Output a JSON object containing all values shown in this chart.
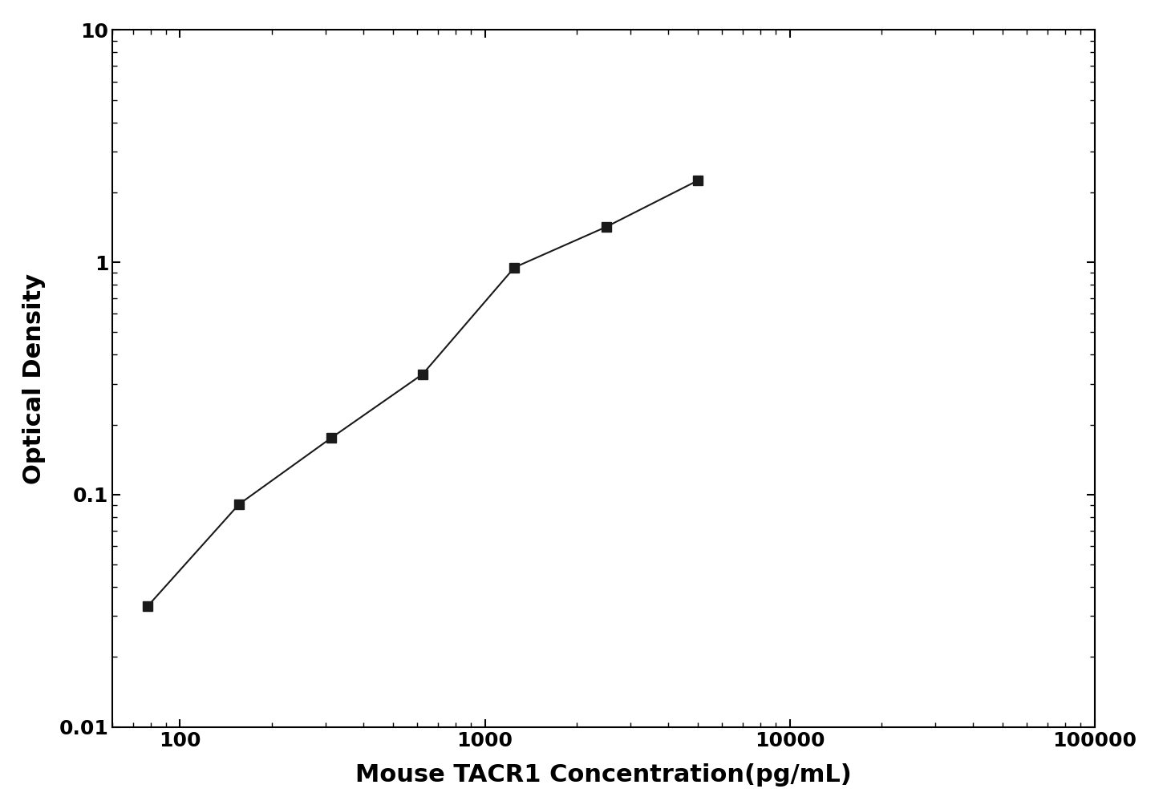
{
  "x": [
    78.125,
    156.25,
    312.5,
    625,
    1250,
    2500,
    5000
  ],
  "y": [
    0.033,
    0.091,
    0.175,
    0.33,
    0.95,
    1.42,
    2.25
  ],
  "xlabel": "Mouse TACR1 Concentration(pg/mL)",
  "ylabel": "Optical Density",
  "xlim": [
    60,
    100000
  ],
  "ylim": [
    0.01,
    10
  ],
  "line_color": "#1a1a1a",
  "marker": "s",
  "marker_color": "#1a1a1a",
  "marker_size": 9,
  "line_width": 1.5,
  "xlabel_fontsize": 22,
  "ylabel_fontsize": 22,
  "tick_fontsize": 18,
  "background_color": "#ffffff",
  "ytick_labels": [
    [
      0.01,
      "0.01"
    ],
    [
      0.1,
      "0.1"
    ],
    [
      1,
      "1"
    ],
    [
      10,
      "10"
    ]
  ],
  "xtick_labels": [
    [
      100,
      "100"
    ],
    [
      1000,
      "1000"
    ],
    [
      10000,
      "10000"
    ],
    [
      100000,
      "100000"
    ]
  ]
}
